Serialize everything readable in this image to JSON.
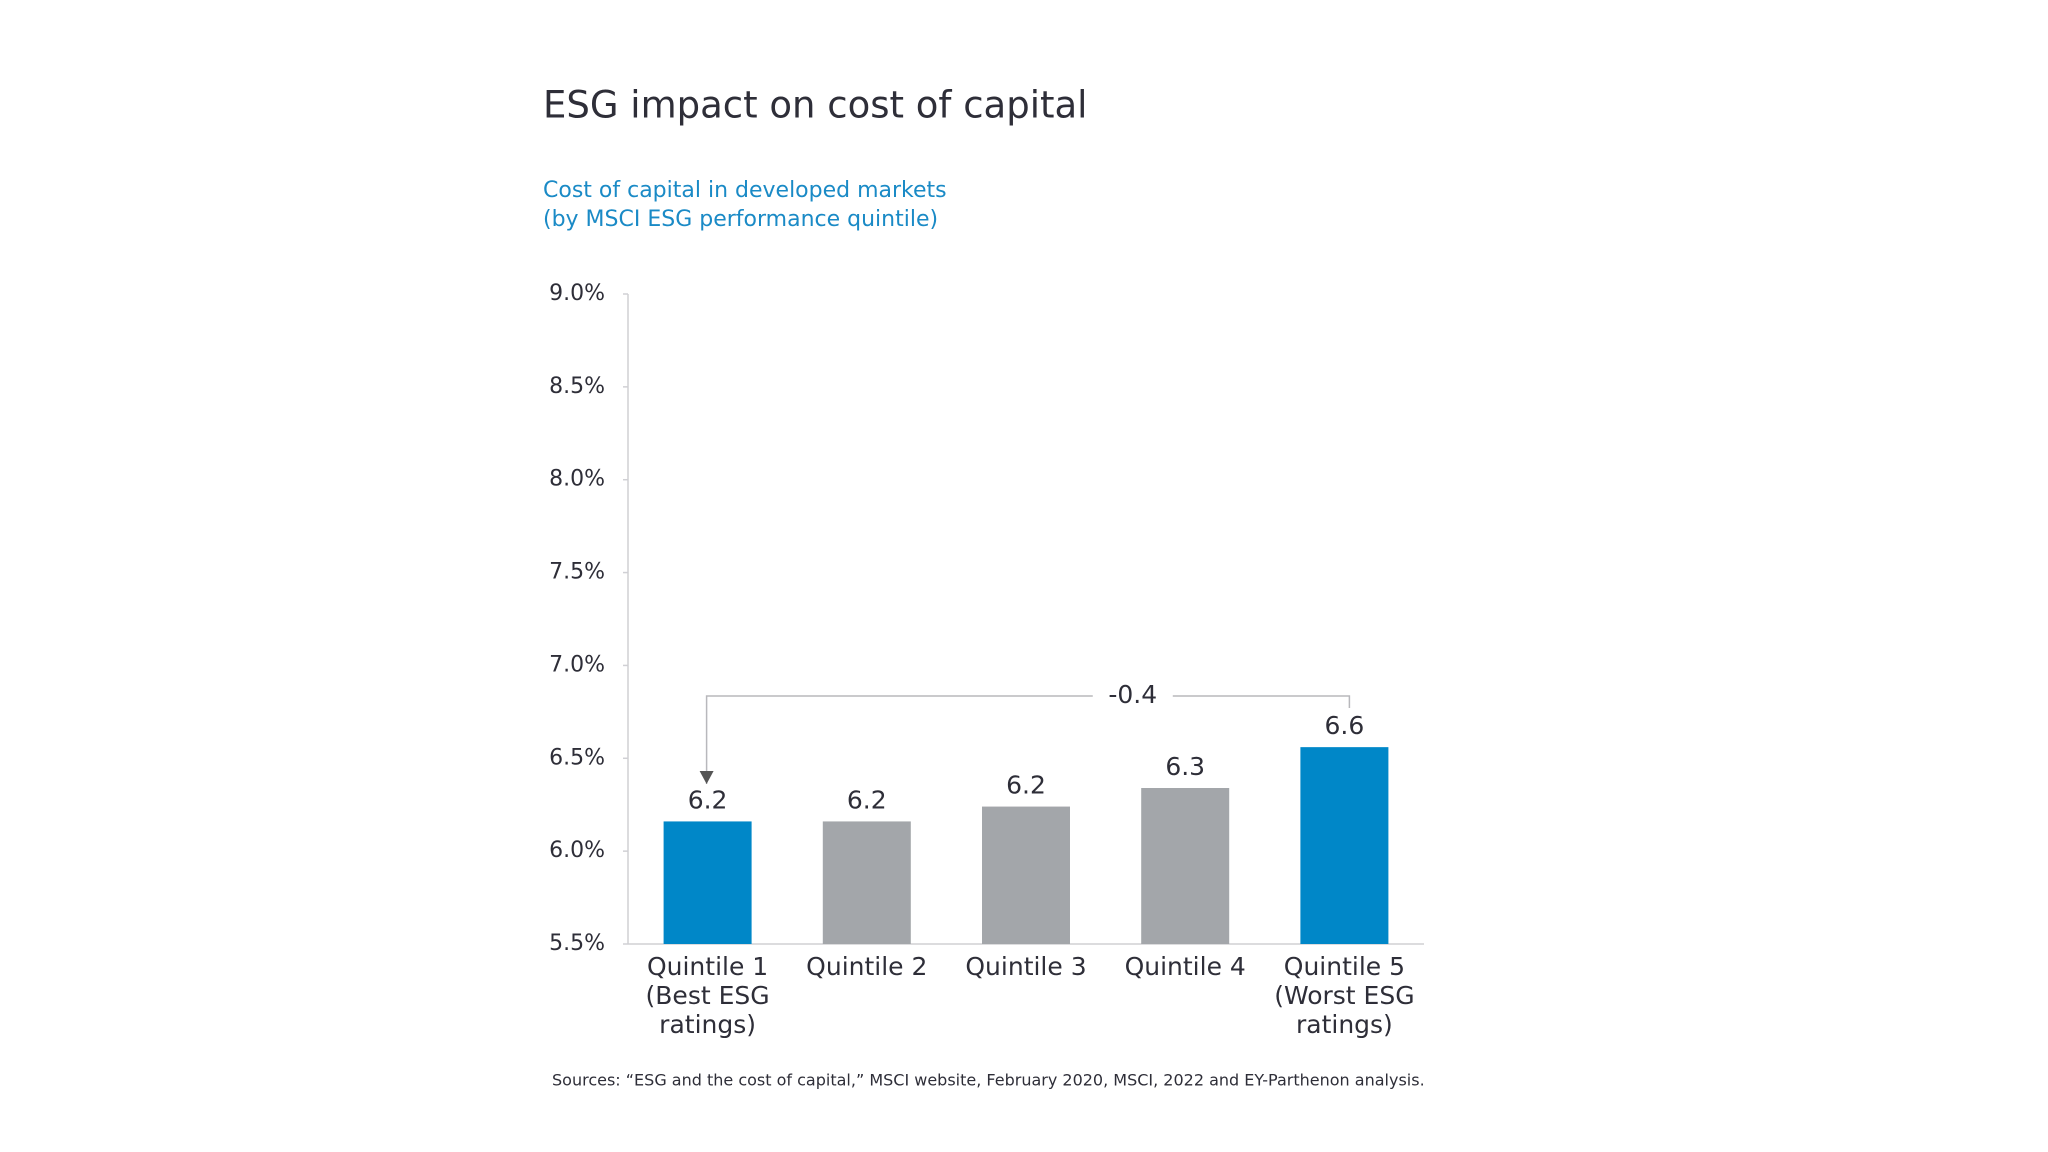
{
  "chart_data": {
    "type": "bar",
    "title": "ESG impact on cost of capital",
    "subtitle": [
      "Cost of capital in developed markets",
      "(by MSCI ESG performance quintile)"
    ],
    "categories": [
      "Quintile 1 (Best ESG ratings)",
      "Quintile 2",
      "Quintile 3",
      "Quintile 4",
      "Quintile 5 (Worst ESG ratings)"
    ],
    "values": [
      6.16,
      6.16,
      6.24,
      6.34,
      6.56
    ],
    "value_labels": [
      "6.2",
      "6.2",
      "6.2",
      "6.3",
      "6.6"
    ],
    "colors": [
      "#0087c8",
      "#a3a6aa",
      "#a3a6aa",
      "#a3a6aa",
      "#0087c8"
    ],
    "ylim": [
      5.5,
      9.0
    ],
    "yticks": [
      {
        "value": 5.5,
        "label": "5.5%"
      },
      {
        "value": 6.0,
        "label": "6.0%"
      },
      {
        "value": 6.5,
        "label": "6.5%"
      },
      {
        "value": 7.0,
        "label": "7.0%"
      },
      {
        "value": 7.5,
        "label": "7.5%"
      },
      {
        "value": 8.0,
        "label": "8.0%"
      },
      {
        "value": 8.5,
        "label": "8.5%"
      },
      {
        "value": 9.0,
        "label": "9.0%"
      }
    ],
    "annotation": "-0.4",
    "source": "Sources: “ESG and the cost of capital,” MSCI website, February 2020, MSCI, 2022 and EY-Parthenon analysis."
  }
}
